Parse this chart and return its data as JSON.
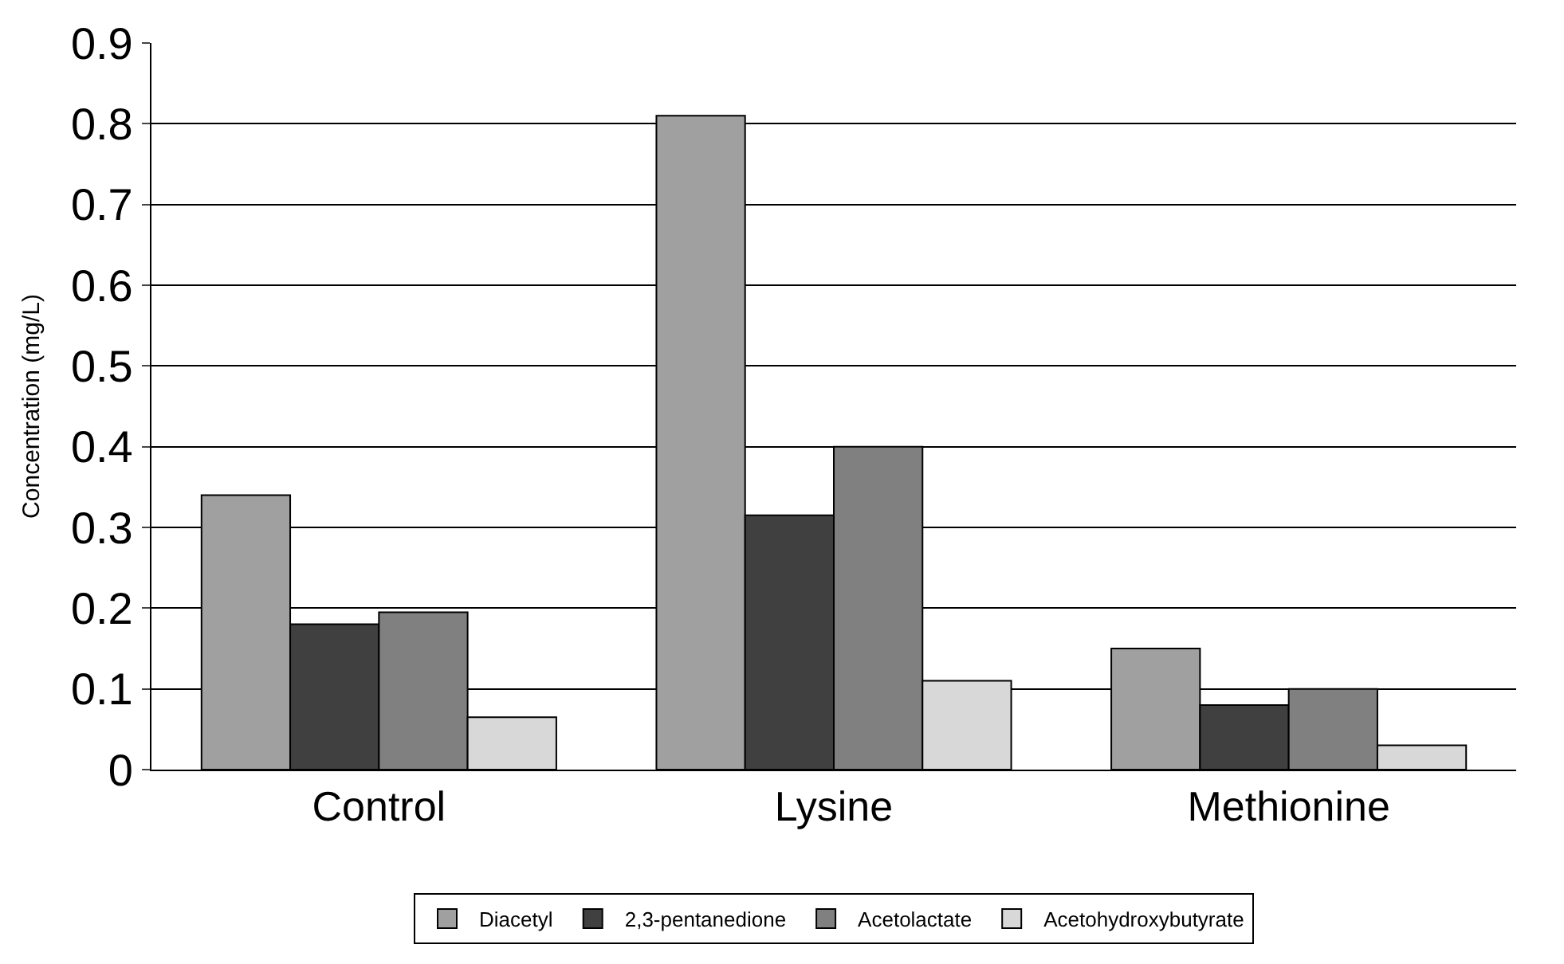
{
  "chart_data": {
    "type": "bar",
    "ylabel": "Concentration (mg/L)",
    "categories": [
      "Control",
      "Lysine",
      "Methionine"
    ],
    "series": [
      {
        "name": "Diacetyl",
        "color": "#a0a0a0",
        "values": [
          0.34,
          0.81,
          0.15
        ]
      },
      {
        "name": "2,3-pentanedione",
        "color": "#404040",
        "values": [
          0.18,
          0.315,
          0.08
        ]
      },
      {
        "name": "Acetolactate",
        "color": "#808080",
        "values": [
          0.195,
          0.4,
          0.1
        ]
      },
      {
        "name": "Acetohydroxybutyrate",
        "color": "#d8d8d8",
        "values": [
          0.065,
          0.11,
          0.03
        ]
      }
    ],
    "ylim": [
      0,
      0.9
    ],
    "yticks": [
      {
        "value": 0,
        "label": "0"
      },
      0.1,
      0.2,
      0.3,
      0.4,
      0.5,
      0.6,
      0.7,
      0.8,
      0.9
    ],
    "grid": "y",
    "legend": "bottom"
  }
}
